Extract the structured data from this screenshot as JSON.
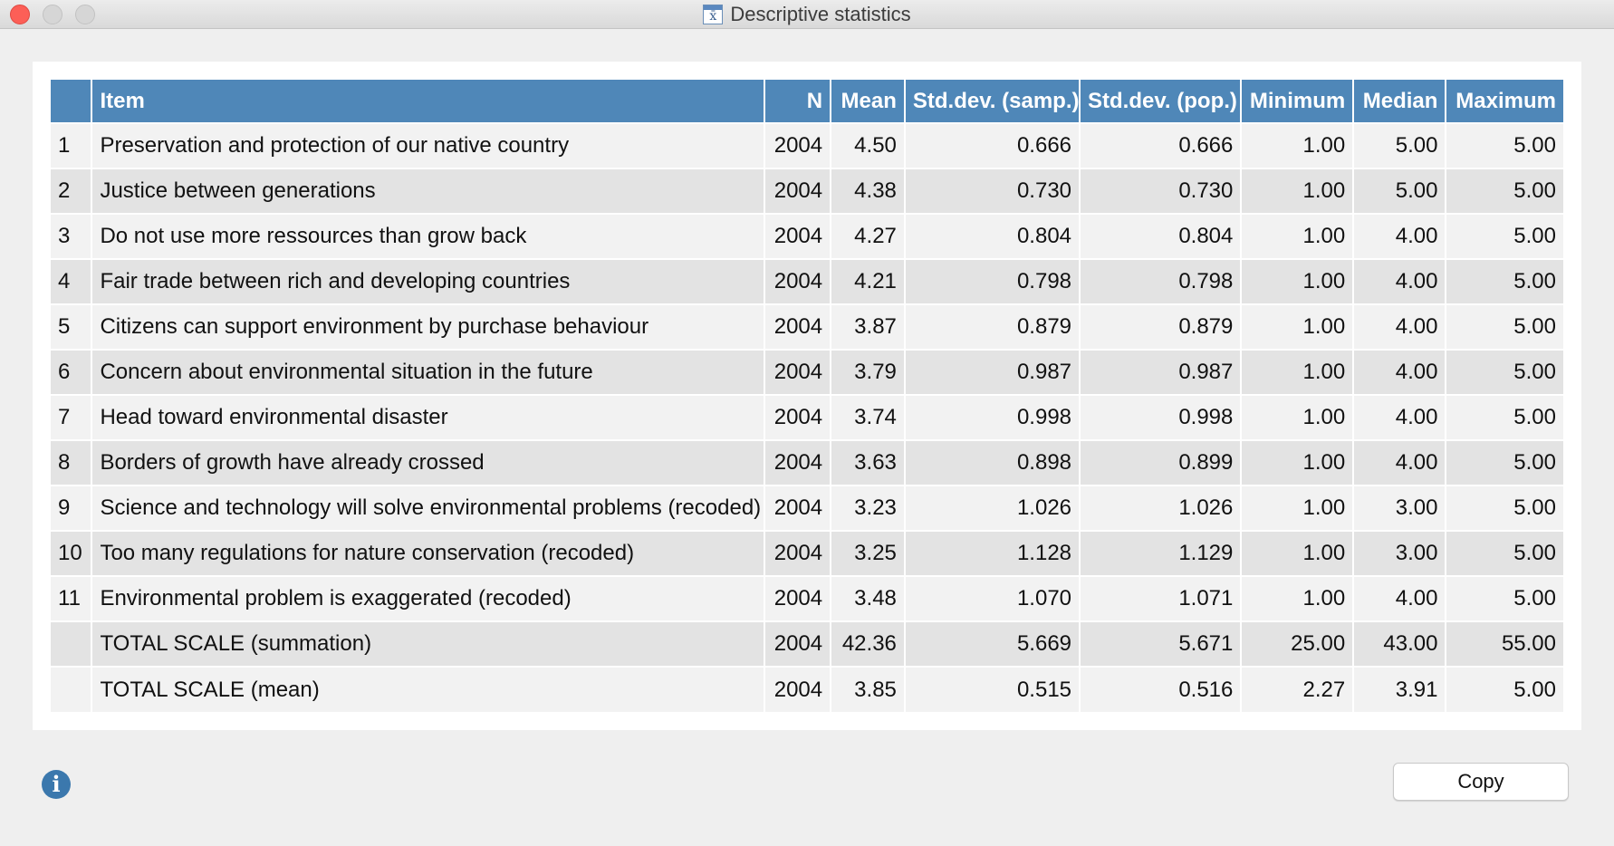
{
  "window": {
    "title": "Descriptive statistics",
    "title_icon_glyph": "x̄"
  },
  "table": {
    "headers": [
      "",
      "Item",
      "N",
      "Mean",
      "Std.dev. (samp.)",
      "Std.dev. (pop.)",
      "Minimum",
      "Median",
      "Maximum"
    ],
    "rows": [
      [
        "1",
        "Preservation and protection of our native country",
        "2004",
        "4.50",
        "0.666",
        "0.666",
        "1.00",
        "5.00",
        "5.00"
      ],
      [
        "2",
        "Justice between generations",
        "2004",
        "4.38",
        "0.730",
        "0.730",
        "1.00",
        "5.00",
        "5.00"
      ],
      [
        "3",
        "Do not use more ressources than grow back",
        "2004",
        "4.27",
        "0.804",
        "0.804",
        "1.00",
        "4.00",
        "5.00"
      ],
      [
        "4",
        "Fair trade between rich and developing countries",
        "2004",
        "4.21",
        "0.798",
        "0.798",
        "1.00",
        "4.00",
        "5.00"
      ],
      [
        "5",
        "Citizens can support environment by purchase behaviour",
        "2004",
        "3.87",
        "0.879",
        "0.879",
        "1.00",
        "4.00",
        "5.00"
      ],
      [
        "6",
        "Concern about environmental situation in the future",
        "2004",
        "3.79",
        "0.987",
        "0.987",
        "1.00",
        "4.00",
        "5.00"
      ],
      [
        "7",
        "Head toward environmental disaster",
        "2004",
        "3.74",
        "0.998",
        "0.998",
        "1.00",
        "4.00",
        "5.00"
      ],
      [
        "8",
        "Borders of growth have already crossed",
        "2004",
        "3.63",
        "0.898",
        "0.899",
        "1.00",
        "4.00",
        "5.00"
      ],
      [
        "9",
        "Science and technology will solve environmental problems (recoded)",
        "2004",
        "3.23",
        "1.026",
        "1.026",
        "1.00",
        "3.00",
        "5.00"
      ],
      [
        "10",
        "Too many regulations for nature conservation (recoded)",
        "2004",
        "3.25",
        "1.128",
        "1.129",
        "1.00",
        "3.00",
        "5.00"
      ],
      [
        "11",
        "Environmental problem is exaggerated (recoded)",
        "2004",
        "3.48",
        "1.070",
        "1.071",
        "1.00",
        "4.00",
        "5.00"
      ],
      [
        "",
        "TOTAL SCALE (summation)",
        "2004",
        "42.36",
        "5.669",
        "5.671",
        "25.00",
        "43.00",
        "55.00"
      ],
      [
        "",
        "TOTAL SCALE (mean)",
        "2004",
        "3.85",
        "0.515",
        "0.516",
        "2.27",
        "3.91",
        "5.00"
      ]
    ]
  },
  "footer": {
    "info_glyph": "i",
    "copy_label": "Copy"
  },
  "colors": {
    "header_bg": "#4f87b8",
    "row_odd": "#f2f2f2",
    "row_even": "#e3e3e3",
    "close_button": "#fc5f57",
    "info_icon": "#3b78ad"
  }
}
